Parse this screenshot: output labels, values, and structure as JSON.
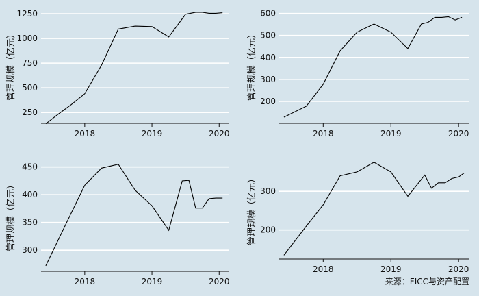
{
  "source_note": "来源：FICC与资产配置",
  "chart_data": [
    {
      "type": "line",
      "ylabel": "管理规模（亿元）",
      "xlim": [
        2017.35,
        2020.15
      ],
      "ylim": [
        140,
        1320
      ],
      "yticks": [
        250,
        500,
        750,
        1000,
        1250
      ],
      "xticks": [
        2018,
        2019,
        2020
      ],
      "grid": true,
      "series": [
        {
          "x": [
            2017.42,
            2017.6,
            2017.8,
            2018.0,
            2018.25,
            2018.5,
            2018.75,
            2019.0,
            2019.25,
            2019.5,
            2019.65,
            2019.75,
            2019.85,
            2019.95,
            2020.05
          ],
          "y": [
            135,
            230,
            330,
            440,
            730,
            1095,
            1125,
            1120,
            1015,
            1245,
            1265,
            1265,
            1255,
            1255,
            1260
          ]
        }
      ]
    },
    {
      "type": "line",
      "ylabel": "管理规模（亿元）",
      "xlim": [
        2017.35,
        2020.15
      ],
      "ylim": [
        100,
        630
      ],
      "yticks": [
        200,
        300,
        400,
        500,
        600
      ],
      "xticks": [
        2018,
        2019,
        2020
      ],
      "grid": true,
      "series": [
        {
          "x": [
            2017.42,
            2017.75,
            2018.0,
            2018.25,
            2018.5,
            2018.75,
            2019.0,
            2019.25,
            2019.45,
            2019.55,
            2019.65,
            2019.75,
            2019.85,
            2019.95,
            2020.05
          ],
          "y": [
            128,
            178,
            278,
            430,
            515,
            552,
            515,
            440,
            552,
            560,
            582,
            582,
            585,
            570,
            582
          ]
        }
      ]
    },
    {
      "type": "line",
      "ylabel": "管理规模（亿元）",
      "xlim": [
        2017.35,
        2020.15
      ],
      "ylim": [
        262,
        462
      ],
      "yticks": [
        300,
        350,
        400,
        450
      ],
      "xticks": [
        2018,
        2019,
        2020
      ],
      "grid": true,
      "series": [
        {
          "x": [
            2017.42,
            2017.75,
            2018.0,
            2018.25,
            2018.5,
            2018.75,
            2019.0,
            2019.25,
            2019.45,
            2019.55,
            2019.65,
            2019.75,
            2019.85,
            2019.95,
            2020.05
          ],
          "y": [
            272,
            355,
            417,
            448,
            455,
            408,
            380,
            336,
            425,
            426,
            376,
            376,
            393,
            394,
            394
          ]
        }
      ]
    },
    {
      "type": "line",
      "ylabel": "管理规模（亿元）",
      "xlim": [
        2017.35,
        2020.15
      ],
      "ylim": [
        125,
        380
      ],
      "yticks": [
        200,
        300
      ],
      "xticks": [
        2018,
        2019,
        2020
      ],
      "grid": true,
      "series": [
        {
          "x": [
            2017.42,
            2017.75,
            2018.0,
            2018.25,
            2018.5,
            2018.75,
            2019.0,
            2019.25,
            2019.5,
            2019.6,
            2019.7,
            2019.8,
            2019.9,
            2020.0,
            2020.08
          ],
          "y": [
            135,
            210,
            265,
            340,
            350,
            375,
            350,
            287,
            342,
            308,
            322,
            322,
            333,
            337,
            347
          ]
        }
      ]
    }
  ]
}
